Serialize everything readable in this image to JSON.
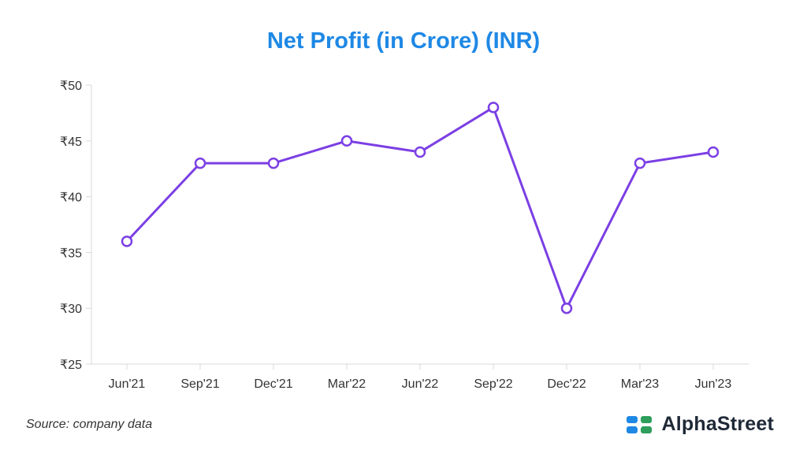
{
  "chart_data": {
    "type": "line",
    "title": "Net Profit (in Crore) (INR)",
    "categories": [
      "Jun'21",
      "Sep'21",
      "Dec'21",
      "Mar'22",
      "Jun'22",
      "Sep'22",
      "Dec'22",
      "Mar'23",
      "Jun'23"
    ],
    "values": [
      36,
      43,
      43,
      45,
      44,
      48,
      30,
      43,
      44
    ],
    "ylim": [
      25,
      50
    ],
    "yticks": [
      25,
      30,
      35,
      40,
      45,
      50
    ],
    "ytick_labels": [
      "₹25",
      "₹30",
      "₹35",
      "₹40",
      "₹45",
      "₹50"
    ],
    "grid": false,
    "line_color": "#7b3fe4"
  },
  "footer": {
    "source": "Source: company data",
    "brand": "AlphaStreet"
  },
  "colors": {
    "title": "#1e88e5",
    "logo_blue": "#1e88e5",
    "logo_green": "#2e9e5b"
  }
}
